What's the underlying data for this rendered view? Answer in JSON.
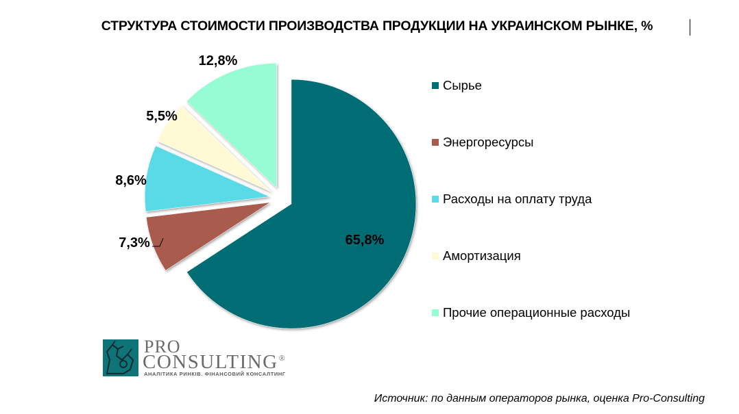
{
  "chart_data": {
    "type": "pie",
    "title": "СТРУКТУРА СТОИМОСТИ ПРОИЗВОДСТВА ПРОДУКЦИИ НА УКРАИНСКОМ РЫНКЕ, %",
    "legend_position": "right",
    "slices": [
      {
        "name": "Сырье",
        "value": 65.8,
        "label": "65,8%",
        "color": "#006d75"
      },
      {
        "name": "Энергоресурсы",
        "value": 7.3,
        "label": "7,3%",
        "color": "#a95b4e"
      },
      {
        "name": "Расходы на оплату труда",
        "value": 8.6,
        "label": "8,6%",
        "color": "#5ad9e6"
      },
      {
        "name": "Амортизация",
        "value": 5.5,
        "label": "5,5%",
        "color": "#fff9d6"
      },
      {
        "name": "Прочие операционные расходы",
        "value": 12.8,
        "label": "12,8%",
        "color": "#96fcd3"
      }
    ]
  },
  "logo": {
    "pro": "PRO",
    "consulting": "CONSULTING",
    "registered": "®",
    "tagline": "АНАЛІТИКА РИНКІВ. ФІНАНСОВИЙ КОНСАЛТИНГ"
  },
  "source": "Источник: по данным операторов рынка, оценка Pro-Consulting"
}
